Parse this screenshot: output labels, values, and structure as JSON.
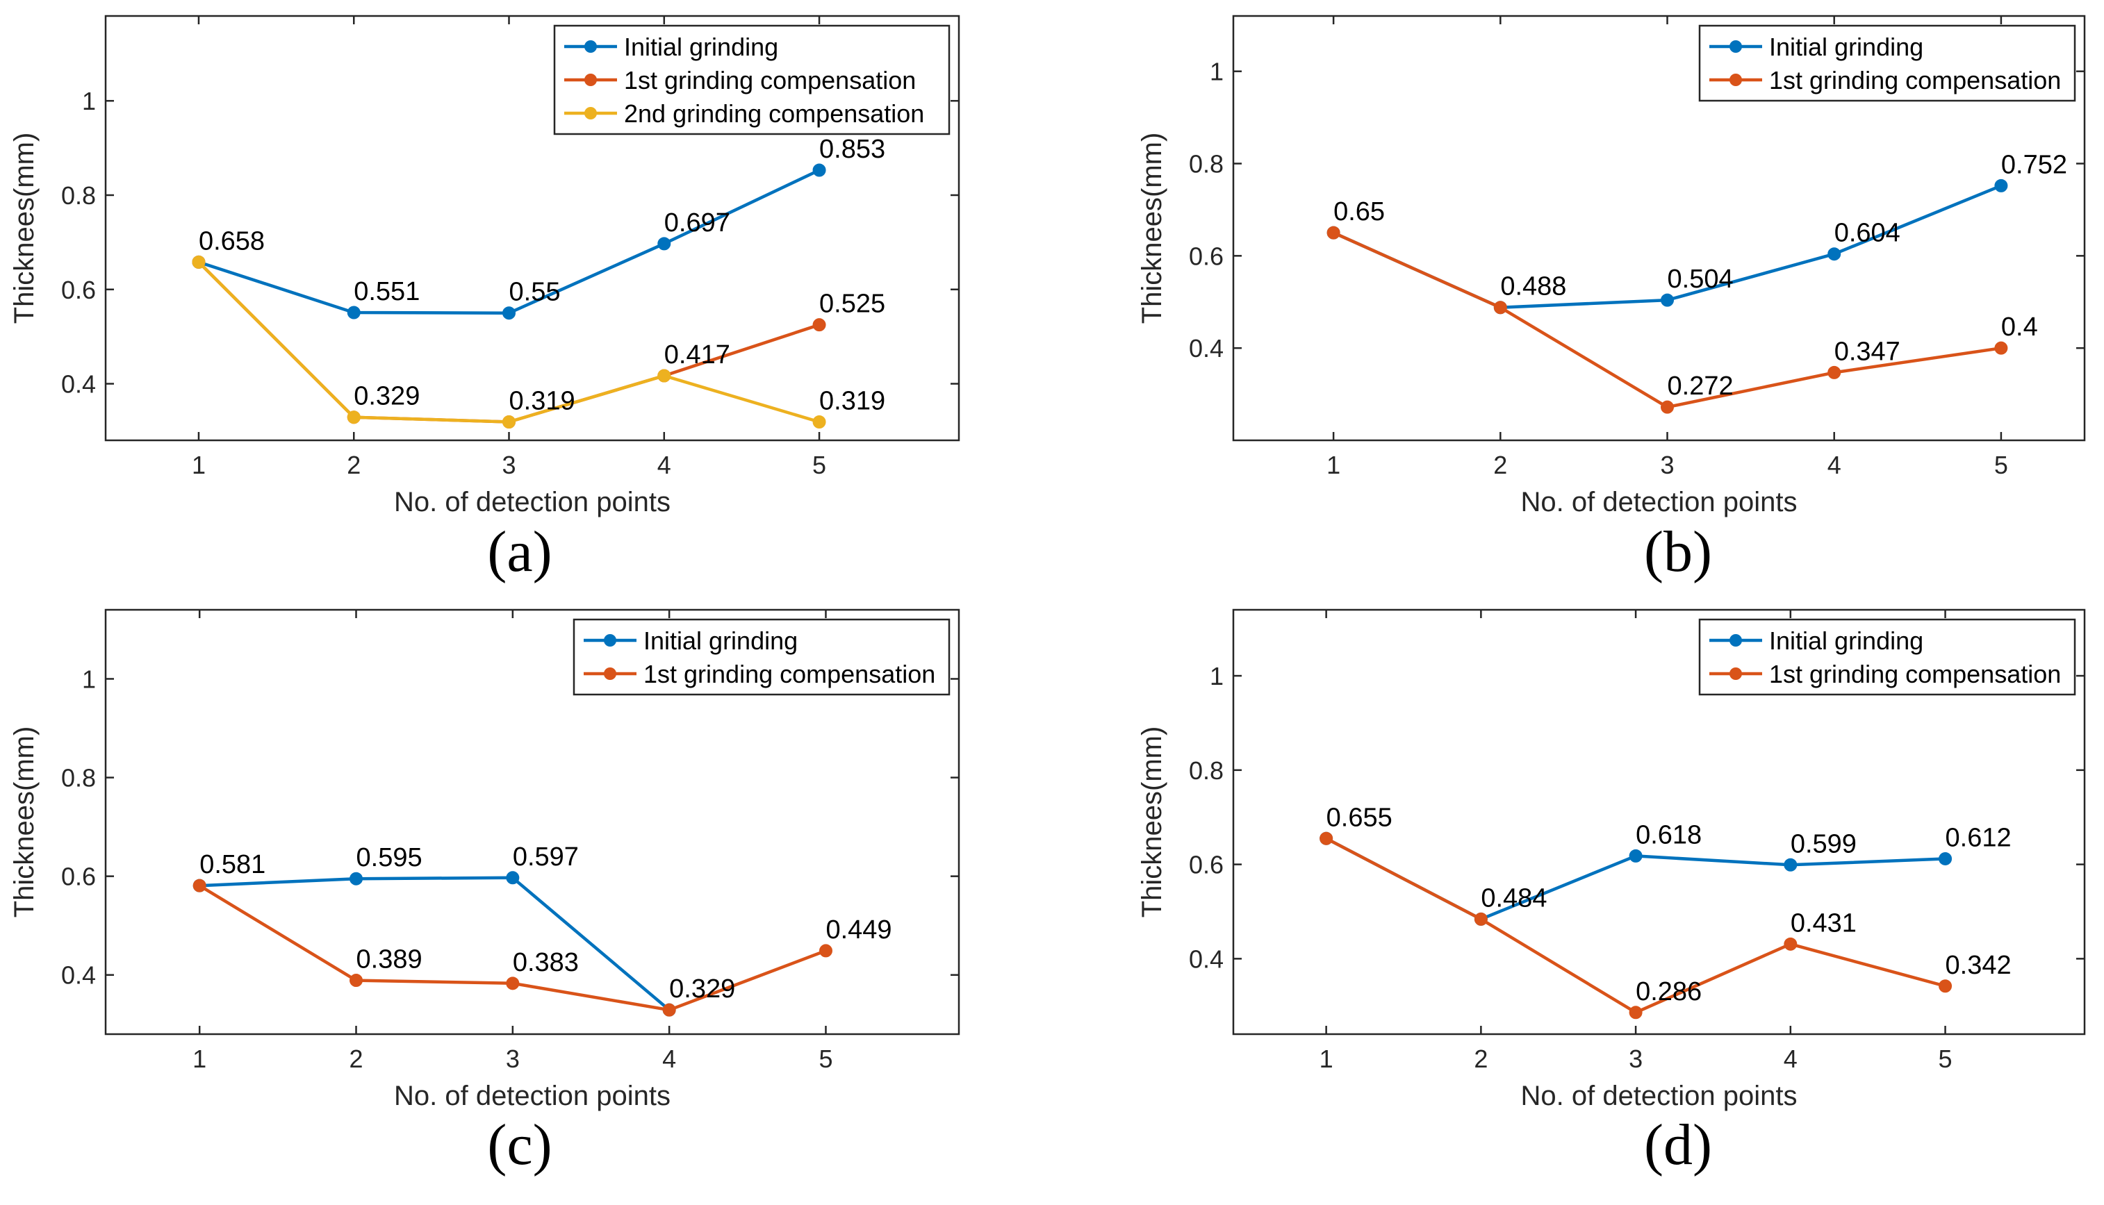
{
  "colors": {
    "initial": "#0072BD",
    "first": "#D95319",
    "second": "#EDB120",
    "axis": "#262626",
    "grid": "#ffffff",
    "background": "#ffffff"
  },
  "chart_data": [
    {
      "type": "line",
      "caption": "(a)",
      "xlabel": "No. of detection points",
      "ylabel": "Thicknees(mm)",
      "x": [
        1,
        2,
        3,
        4,
        5
      ],
      "xlim": [
        0.4,
        5.9
      ],
      "ylim": [
        0.28,
        1.18
      ],
      "yticks": [
        0.4,
        0.6,
        0.8,
        1
      ],
      "ytick_labels": [
        "0.4",
        "0.6",
        "0.8",
        "1"
      ],
      "xticks": [
        1,
        2,
        3,
        4,
        5
      ],
      "xtick_labels": [
        "1",
        "2",
        "3",
        "4",
        "5"
      ],
      "legend_position": "top-right",
      "series": [
        {
          "name": "Initial grinding",
          "color": "#0072BD",
          "values": [
            0.658,
            0.551,
            0.55,
            0.697,
            0.853
          ]
        },
        {
          "name": "1st grinding compensation",
          "color": "#D95319",
          "values": [
            0.658,
            0.329,
            0.319,
            0.417,
            0.525
          ]
        },
        {
          "name": "2nd grinding compensation",
          "color": "#EDB120",
          "values": [
            0.658,
            0.329,
            0.319,
            0.417,
            0.319
          ]
        }
      ],
      "annotations": [
        {
          "x": 1,
          "y": 0.658,
          "text": "0.658"
        },
        {
          "x": 2,
          "y": 0.551,
          "text": "0.551"
        },
        {
          "x": 3,
          "y": 0.55,
          "text": "0.55"
        },
        {
          "x": 4,
          "y": 0.697,
          "text": "0.697"
        },
        {
          "x": 5,
          "y": 0.853,
          "text": "0.853"
        },
        {
          "x": 2,
          "y": 0.329,
          "text": "0.329"
        },
        {
          "x": 3,
          "y": 0.319,
          "text": "0.319"
        },
        {
          "x": 4,
          "y": 0.417,
          "text": "0.417"
        },
        {
          "x": 5,
          "y": 0.525,
          "text": "0.525"
        },
        {
          "x": 5,
          "y": 0.319,
          "text": "0.319"
        }
      ]
    },
    {
      "type": "line",
      "caption": "(b)",
      "xlabel": "No. of detection points",
      "ylabel": "Thicknees(mm)",
      "x": [
        1,
        2,
        3,
        4,
        5
      ],
      "xlim": [
        0.4,
        5.5
      ],
      "ylim": [
        0.2,
        1.12
      ],
      "yticks": [
        0.4,
        0.6,
        0.8,
        1
      ],
      "ytick_labels": [
        "0.4",
        "0.6",
        "0.8",
        "1"
      ],
      "xticks": [
        1,
        2,
        3,
        4,
        5
      ],
      "xtick_labels": [
        "1",
        "2",
        "3",
        "4",
        "5"
      ],
      "legend_position": "top-right",
      "series": [
        {
          "name": "Initial grinding",
          "color": "#0072BD",
          "values": [
            0.65,
            0.488,
            0.504,
            0.604,
            0.752
          ]
        },
        {
          "name": "1st grinding compensation",
          "color": "#D95319",
          "values": [
            0.65,
            0.488,
            0.272,
            0.347,
            0.4
          ]
        }
      ],
      "annotations": [
        {
          "x": 1,
          "y": 0.65,
          "text": "0.65"
        },
        {
          "x": 2,
          "y": 0.488,
          "text": "0.488"
        },
        {
          "x": 3,
          "y": 0.504,
          "text": "0.504"
        },
        {
          "x": 4,
          "y": 0.604,
          "text": "0.604"
        },
        {
          "x": 5,
          "y": 0.752,
          "text": "0.752"
        },
        {
          "x": 3,
          "y": 0.272,
          "text": "0.272"
        },
        {
          "x": 4,
          "y": 0.347,
          "text": "0.347"
        },
        {
          "x": 5,
          "y": 0.4,
          "text": "0.4"
        }
      ]
    },
    {
      "type": "line",
      "caption": "(c)",
      "xlabel": "No. of detection points",
      "ylabel": "Thicknees(mm)",
      "x": [
        1,
        2,
        3,
        4,
        5
      ],
      "xlim": [
        0.4,
        5.85
      ],
      "ylim": [
        0.28,
        1.14
      ],
      "yticks": [
        0.4,
        0.6,
        0.8,
        1
      ],
      "ytick_labels": [
        "0.4",
        "0.6",
        "0.8",
        "1"
      ],
      "xticks": [
        1,
        2,
        3,
        4,
        5
      ],
      "xtick_labels": [
        "1",
        "2",
        "3",
        "4",
        "5"
      ],
      "legend_position": "top-right",
      "series": [
        {
          "name": "Initial grinding",
          "color": "#0072BD",
          "values": [
            0.581,
            0.595,
            0.597,
            0.329,
            null
          ]
        },
        {
          "name": "1st grinding compensation",
          "color": "#D95319",
          "values": [
            0.581,
            0.389,
            0.383,
            0.329,
            0.449
          ]
        }
      ],
      "annotations": [
        {
          "x": 1,
          "y": 0.581,
          "text": "0.581"
        },
        {
          "x": 2,
          "y": 0.595,
          "text": "0.595"
        },
        {
          "x": 3,
          "y": 0.597,
          "text": "0.597"
        },
        {
          "x": 2,
          "y": 0.389,
          "text": "0.389"
        },
        {
          "x": 3,
          "y": 0.383,
          "text": "0.383"
        },
        {
          "x": 4,
          "y": 0.329,
          "text": "0.329"
        },
        {
          "x": 5,
          "y": 0.449,
          "text": "0.449"
        }
      ]
    },
    {
      "type": "line",
      "caption": "(d)",
      "xlabel": "No. of detection points",
      "ylabel": "Thicknees(mm)",
      "x": [
        1,
        2,
        3,
        4,
        5
      ],
      "xlim": [
        0.4,
        5.9
      ],
      "ylim": [
        0.24,
        1.14
      ],
      "yticks": [
        0.4,
        0.6,
        0.8,
        1
      ],
      "ytick_labels": [
        "0.4",
        "0.6",
        "0.8",
        "1"
      ],
      "xticks": [
        1,
        2,
        3,
        4,
        5
      ],
      "xtick_labels": [
        "1",
        "2",
        "3",
        "4",
        "5"
      ],
      "legend_position": "top-right",
      "series": [
        {
          "name": "Initial grinding",
          "color": "#0072BD",
          "values": [
            0.655,
            0.484,
            0.618,
            0.599,
            0.612
          ]
        },
        {
          "name": "1st grinding compensation",
          "color": "#D95319",
          "values": [
            0.655,
            0.484,
            0.286,
            0.431,
            0.342
          ]
        }
      ],
      "annotations": [
        {
          "x": 1,
          "y": 0.655,
          "text": "0.655"
        },
        {
          "x": 2,
          "y": 0.484,
          "text": "0.484"
        },
        {
          "x": 3,
          "y": 0.618,
          "text": "0.618"
        },
        {
          "x": 4,
          "y": 0.599,
          "text": "0.599"
        },
        {
          "x": 5,
          "y": 0.612,
          "text": "0.612"
        },
        {
          "x": 3,
          "y": 0.286,
          "text": "0.286"
        },
        {
          "x": 4,
          "y": 0.431,
          "text": "0.431"
        },
        {
          "x": 5,
          "y": 0.342,
          "text": "0.342"
        }
      ]
    }
  ]
}
